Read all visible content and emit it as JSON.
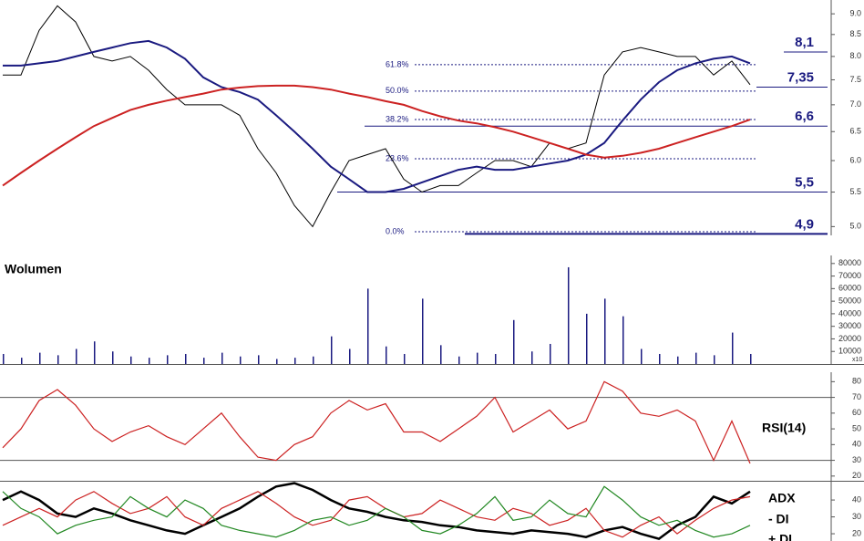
{
  "chart_data": [
    {
      "type": "line",
      "log_scale": true,
      "ylim": [
        4.88,
        9.35
      ],
      "yticks": [
        {
          "value": 5,
          "label": "5.0"
        },
        {
          "value": 5.5,
          "label": "5.5"
        },
        {
          "value": 6,
          "label": "6.0"
        },
        {
          "value": 6.5,
          "label": "6.5"
        },
        {
          "value": 7,
          "label": "7.0"
        },
        {
          "value": 7.5,
          "label": "7.5"
        },
        {
          "value": 8,
          "label": "8.0"
        },
        {
          "value": 8.5,
          "label": "8.5"
        },
        {
          "value": 9,
          "label": "9.0"
        }
      ],
      "series": [
        {
          "color": "#000000",
          "line_width": 1,
          "values": [
            7.6,
            7.6,
            8.6,
            9.2,
            8.8,
            8.0,
            7.9,
            8.0,
            7.7,
            7.3,
            7.0,
            7.0,
            7.0,
            6.8,
            6.2,
            5.8,
            5.3,
            5.0,
            5.5,
            6.0,
            6.1,
            6.2,
            5.7,
            5.5,
            5.6,
            5.6,
            5.8,
            6.0,
            6.0,
            5.9,
            6.3,
            6.2,
            6.3,
            7.6,
            8.1,
            8.2,
            8.1,
            8.0,
            8.0,
            7.6,
            7.9,
            7.4
          ]
        },
        {
          "color": "#1a1a80",
          "line_width": 2,
          "values": [
            7.8,
            7.8,
            7.85,
            7.9,
            8.0,
            8.1,
            8.2,
            8.3,
            8.35,
            8.2,
            7.95,
            7.55,
            7.35,
            7.25,
            7.1,
            6.8,
            6.5,
            6.2,
            5.9,
            5.7,
            5.5,
            5.5,
            5.55,
            5.65,
            5.75,
            5.85,
            5.9,
            5.85,
            5.85,
            5.9,
            5.95,
            6.0,
            6.1,
            6.3,
            6.7,
            7.1,
            7.45,
            7.7,
            7.85,
            7.95,
            8.0,
            7.85
          ]
        },
        {
          "color": "#cc2222",
          "line_width": 2,
          "values": [
            5.6,
            5.8,
            6.0,
            6.2,
            6.4,
            6.6,
            6.75,
            6.9,
            7.0,
            7.08,
            7.15,
            7.22,
            7.3,
            7.34,
            7.37,
            7.38,
            7.38,
            7.35,
            7.3,
            7.22,
            7.15,
            7.07,
            7.0,
            6.88,
            6.78,
            6.7,
            6.65,
            6.58,
            6.5,
            6.4,
            6.3,
            6.2,
            6.1,
            6.05,
            6.08,
            6.13,
            6.2,
            6.3,
            6.4,
            6.5,
            6.6,
            6.72
          ]
        }
      ],
      "fib_levels": [
        {
          "value": 7.82,
          "label": "61.8%"
        },
        {
          "value": 7.27,
          "label": "50.0%"
        },
        {
          "value": 6.72,
          "label": "38.2%"
        },
        {
          "value": 6.03,
          "label": "23.6%"
        },
        {
          "value": 4.93,
          "label": "0.0%"
        }
      ],
      "levels": [
        {
          "value": 8.1,
          "label": "8,1"
        },
        {
          "value": 7.35,
          "label": "7,35"
        },
        {
          "value": 6.6,
          "label": "6,6"
        },
        {
          "value": 5.5,
          "label": "5,5"
        },
        {
          "value": 4.9,
          "label": "4,9"
        }
      ],
      "level_color": "#1a1a80"
    },
    {
      "type": "bar",
      "title": "Wolumen",
      "unit_label": "x10",
      "color": "#1a1a80",
      "ylim": [
        0,
        86400
      ],
      "yticks": [
        10000,
        20000,
        30000,
        40000,
        50000,
        60000,
        70000,
        80000
      ],
      "values": [
        8000,
        5000,
        9000,
        7000,
        12000,
        18000,
        10000,
        6000,
        5000,
        7000,
        8000,
        5000,
        9000,
        6000,
        7000,
        4000,
        5000,
        6000,
        22000,
        12000,
        60000,
        14000,
        8000,
        52000,
        15000,
        6000,
        9000,
        8000,
        35000,
        10000,
        16000,
        77000,
        40000,
        52000,
        38000,
        12000,
        8000,
        6000,
        9000,
        7000,
        25000,
        8000
      ]
    },
    {
      "type": "line",
      "ylim": [
        17,
        86
      ],
      "yticks": [
        20,
        30,
        40,
        50,
        60,
        70,
        80
      ],
      "hlines": [
        30,
        70
      ],
      "series": [
        {
          "name": "RSI(14)",
          "color": "#cc2222",
          "line_width": 1.2,
          "values": [
            38,
            50,
            68,
            75,
            65,
            50,
            42,
            48,
            52,
            45,
            40,
            50,
            60,
            45,
            32,
            30,
            40,
            45,
            60,
            68,
            62,
            66,
            48,
            48,
            42,
            50,
            58,
            70,
            48,
            55,
            62,
            50,
            55,
            80,
            74,
            60,
            58,
            62,
            55,
            30,
            55,
            28
          ]
        }
      ]
    },
    {
      "type": "line",
      "ylim": [
        15.7,
        51.4
      ],
      "yticks": [
        20,
        30,
        40
      ],
      "series": [
        {
          "name": "ADX",
          "color": "#000000",
          "line_width": 2.5,
          "values": [
            40,
            45,
            40,
            32,
            30,
            35,
            32,
            28,
            25,
            22,
            20,
            25,
            30,
            35,
            42,
            48,
            50,
            46,
            40,
            35,
            33,
            30,
            28,
            27,
            25,
            24,
            22,
            21,
            20,
            22,
            21,
            20,
            18,
            22,
            24,
            20,
            17,
            25,
            30,
            42,
            38,
            45
          ]
        },
        {
          "name": "- DI",
          "color": "#cc2222",
          "line_width": 1.2,
          "values": [
            25,
            30,
            35,
            30,
            40,
            45,
            38,
            32,
            35,
            42,
            30,
            25,
            35,
            40,
            45,
            38,
            30,
            25,
            28,
            40,
            42,
            35,
            30,
            32,
            40,
            35,
            30,
            28,
            35,
            32,
            25,
            28,
            35,
            22,
            18,
            25,
            30,
            20,
            28,
            35,
            40,
            42
          ]
        },
        {
          "name": "+ DI",
          "color": "#228822",
          "line_width": 1.2,
          "values": [
            45,
            35,
            30,
            20,
            25,
            28,
            30,
            42,
            35,
            30,
            40,
            35,
            25,
            22,
            20,
            18,
            22,
            28,
            30,
            25,
            28,
            35,
            30,
            22,
            20,
            25,
            32,
            42,
            28,
            30,
            40,
            32,
            30,
            48,
            40,
            30,
            25,
            28,
            22,
            18,
            20,
            25
          ]
        }
      ]
    }
  ]
}
